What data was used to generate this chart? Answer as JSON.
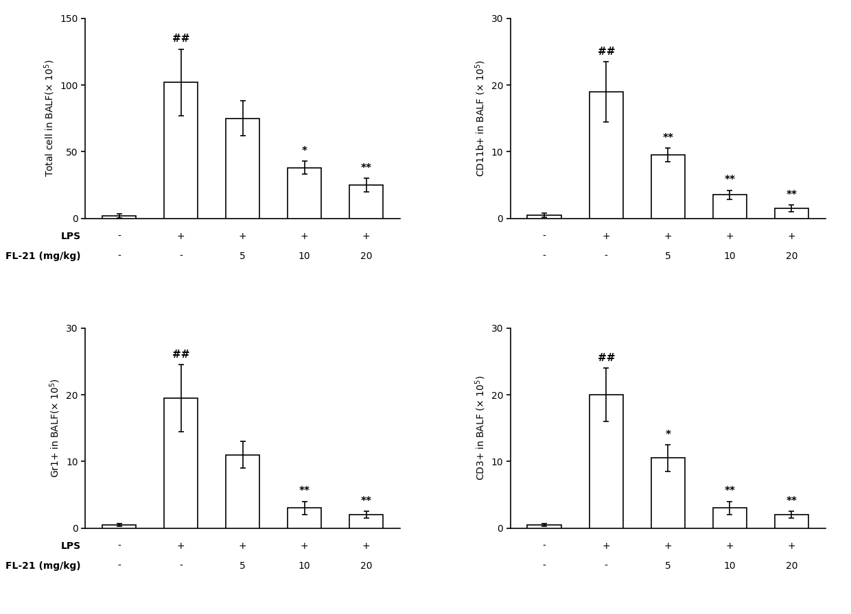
{
  "subplots": [
    {
      "ylabel": "Total cell in BALF(× 10$^5$)",
      "ylim": [
        0,
        150
      ],
      "yticks": [
        0,
        50,
        100,
        150
      ],
      "values": [
        2,
        102,
        75,
        38,
        25
      ],
      "errors": [
        1.5,
        25,
        13,
        5,
        5
      ],
      "annotations": [
        "",
        "##",
        "",
        "*",
        "**"
      ],
      "lps_row": [
        "-",
        "+",
        "+",
        "+",
        "+"
      ],
      "fl21_row": [
        "-",
        "-",
        "5",
        "10",
        "20"
      ],
      "show_row_labels": true
    },
    {
      "ylabel": "CD11b+ in BALF (× 10$^5$)",
      "ylim": [
        0,
        30
      ],
      "yticks": [
        0,
        10,
        20,
        30
      ],
      "values": [
        0.5,
        19,
        9.5,
        3.5,
        1.5
      ],
      "errors": [
        0.3,
        4.5,
        1.0,
        0.7,
        0.5
      ],
      "annotations": [
        "",
        "##",
        "**",
        "**",
        "**"
      ],
      "lps_row": [
        "-",
        "+",
        "+",
        "+",
        "+"
      ],
      "fl21_row": [
        "-",
        "-",
        "5",
        "10",
        "20"
      ],
      "show_row_labels": false
    },
    {
      "ylabel": "Gr1+ in BALF(× 10$^5$)",
      "ylim": [
        0,
        30
      ],
      "yticks": [
        0,
        10,
        20,
        30
      ],
      "values": [
        0.5,
        19.5,
        11,
        3,
        2
      ],
      "errors": [
        0.2,
        5,
        2,
        1,
        0.5
      ],
      "annotations": [
        "",
        "##",
        "",
        "**",
        "**"
      ],
      "lps_row": [
        "-",
        "+",
        "+",
        "+",
        "+"
      ],
      "fl21_row": [
        "-",
        "-",
        "5",
        "10",
        "20"
      ],
      "show_row_labels": true
    },
    {
      "ylabel": "CD3+ in BALF (× 10$^5$)",
      "ylim": [
        0,
        30
      ],
      "yticks": [
        0,
        10,
        20,
        30
      ],
      "values": [
        0.5,
        20,
        10.5,
        3,
        2
      ],
      "errors": [
        0.2,
        4,
        2,
        1,
        0.5
      ],
      "annotations": [
        "",
        "##",
        "*",
        "**",
        "**"
      ],
      "lps_row": [
        "-",
        "+",
        "+",
        "+",
        "+"
      ],
      "fl21_row": [
        "-",
        "-",
        "5",
        "10",
        "20"
      ],
      "show_row_labels": false
    }
  ],
  "bar_color": "white",
  "bar_edgecolor": "black",
  "bar_linewidth": 1.2,
  "bar_width": 0.55,
  "capsize": 3,
  "elinewidth": 1.2,
  "background_color": "white",
  "tick_fontsize": 10,
  "label_fontsize": 10,
  "annot_fontsize": 11,
  "row_fontsize": 10
}
